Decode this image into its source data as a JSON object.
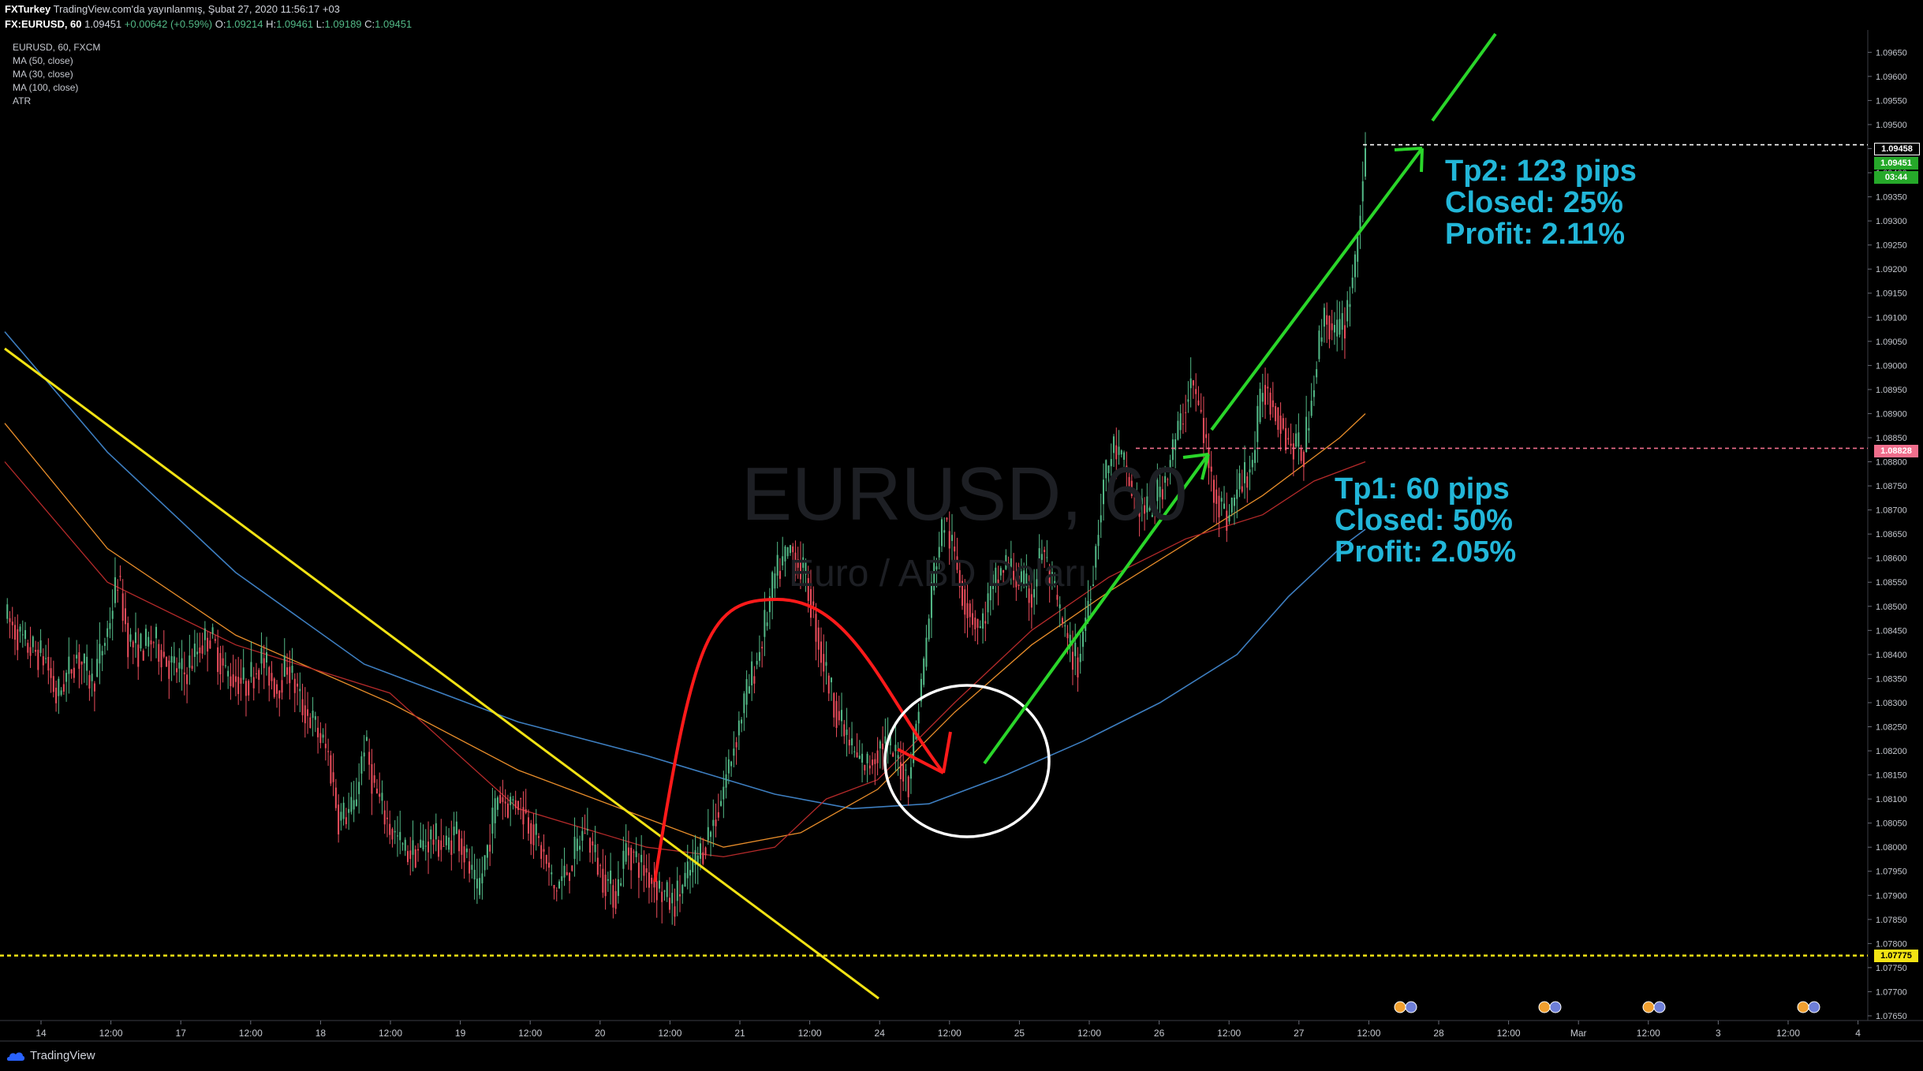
{
  "header": {
    "publisher": "FXTurkey",
    "published_text": "TradingView.com'da yayınlanmış, Şubat 27, 2020 11:56:17 +03",
    "symbol_line": "FX:EURUSD, 60",
    "last": "1.09451",
    "change": "+0.00642 (+0.59%)",
    "o_label": "O:",
    "o": "1.09214",
    "h_label": "H:",
    "h": "1.09461",
    "l_label": "L:",
    "l": "1.09189",
    "c_label": "C:",
    "c": "1.09451"
  },
  "indicators": [
    "EURUSD, 60, FXCM",
    "MA (50, close)",
    "MA (30, close)",
    "MA (100, close)",
    "ATR"
  ],
  "watermark": {
    "symbol": "EURUSD, 60",
    "name": "Euro / ABD Doları"
  },
  "annotations": {
    "tp2": [
      "Tp2: 123 pips",
      "Closed: 25%",
      "Profit: 2.11%"
    ],
    "tp1": [
      "Tp1: 60 pips",
      "Closed: 50%",
      "Profit: 2.05%"
    ]
  },
  "price_tags": {
    "tp2_line": "1.09458",
    "last_price": "1.09451",
    "countdown": "03:44",
    "tp1_line": "1.08828",
    "support_line": "1.07775"
  },
  "brand": "TradingView",
  "colors": {
    "background": "#000000",
    "bull_candle": "#53b987",
    "bear_candle": "#eb4d5c",
    "ma50": "#e88d2a",
    "ma30": "#b52a2a",
    "ma100": "#3d7ec0",
    "trendline": "#f2e314",
    "arrow": "#2ad62a",
    "curve": "#ff1a1a",
    "circle": "#ffffff",
    "annotation": "#22b6d8",
    "tp1_line": "#f06e8c",
    "last_price_tag": "#26a92a"
  },
  "chart_data": {
    "type": "candlestick",
    "ylim": [
      1.0765,
      1.0968
    ],
    "y_ticks": [
      "1.09650",
      "1.09600",
      "1.09550",
      "1.09500",
      "1.09450",
      "1.09400",
      "1.09350",
      "1.09300",
      "1.09250",
      "1.09200",
      "1.09150",
      "1.09100",
      "1.09050",
      "1.09000",
      "1.08950",
      "1.08900",
      "1.08850",
      "1.08800",
      "1.08750",
      "1.08700",
      "1.08650",
      "1.08600",
      "1.08550",
      "1.08500",
      "1.08450",
      "1.08400",
      "1.08350",
      "1.08300",
      "1.08250",
      "1.08200",
      "1.08150",
      "1.08100",
      "1.08050",
      "1.08000",
      "1.07950",
      "1.07900",
      "1.07850",
      "1.07800",
      "1.07750",
      "1.07700",
      "1.07650"
    ],
    "x_ticks": [
      "14",
      "12:00",
      "17",
      "12:00",
      "18",
      "12:00",
      "19",
      "12:00",
      "20",
      "12:00",
      "21",
      "12:00",
      "24",
      "12:00",
      "25",
      "12:00",
      "26",
      "12:00",
      "27",
      "12:00",
      "28",
      "12:00",
      "Mar",
      "12:00",
      "3",
      "12:00",
      "4"
    ],
    "close_path": [
      [
        0,
        1.0848
      ],
      [
        8,
        1.0842
      ],
      [
        16,
        1.0839
      ],
      [
        20,
        1.0831
      ],
      [
        28,
        1.084
      ],
      [
        34,
        1.0834
      ],
      [
        40,
        1.0845
      ],
      [
        44,
        1.0856
      ],
      [
        48,
        1.0843
      ],
      [
        52,
        1.0841
      ],
      [
        58,
        1.0843
      ],
      [
        64,
        1.0838
      ],
      [
        70,
        1.0836
      ],
      [
        76,
        1.0842
      ],
      [
        80,
        1.0844
      ],
      [
        86,
        1.0836
      ],
      [
        94,
        1.0834
      ],
      [
        100,
        1.0839
      ],
      [
        106,
        1.0833
      ],
      [
        110,
        1.0838
      ],
      [
        116,
        1.0829
      ],
      [
        120,
        1.0826
      ],
      [
        126,
        1.0819
      ],
      [
        130,
        1.0806
      ],
      [
        136,
        1.0808
      ],
      [
        140,
        1.0822
      ],
      [
        144,
        1.0812
      ],
      [
        150,
        1.0804
      ],
      [
        156,
        1.0799
      ],
      [
        160,
        1.0799
      ],
      [
        166,
        1.0802
      ],
      [
        172,
        1.08
      ],
      [
        176,
        1.0804
      ],
      [
        180,
        1.0797
      ],
      [
        184,
        1.079
      ],
      [
        188,
        1.08
      ],
      [
        192,
        1.0811
      ],
      [
        196,
        1.0809
      ],
      [
        200,
        1.081
      ],
      [
        206,
        1.0803
      ],
      [
        210,
        1.0798
      ],
      [
        214,
        1.0791
      ],
      [
        220,
        1.0796
      ],
      [
        226,
        1.0804
      ],
      [
        232,
        1.0795
      ],
      [
        238,
        1.079
      ],
      [
        242,
        1.08
      ],
      [
        248,
        1.0796
      ],
      [
        254,
        1.0792
      ],
      [
        260,
        1.0788
      ],
      [
        266,
        1.0794
      ],
      [
        272,
        1.08
      ],
      [
        278,
        1.0808
      ],
      [
        282,
        1.0817
      ],
      [
        288,
        1.083
      ],
      [
        294,
        1.0841
      ],
      [
        300,
        1.0856
      ],
      [
        306,
        1.0862
      ],
      [
        312,
        1.0856
      ],
      [
        318,
        1.084
      ],
      [
        322,
        1.0832
      ],
      [
        326,
        1.0825
      ],
      [
        332,
        1.0818
      ],
      [
        336,
        1.0817
      ],
      [
        342,
        1.0822
      ],
      [
        348,
        1.0818
      ],
      [
        352,
        1.0814
      ],
      [
        358,
        1.0838
      ],
      [
        362,
        1.0858
      ],
      [
        366,
        1.0868
      ],
      [
        370,
        1.086
      ],
      [
        374,
        1.0851
      ],
      [
        380,
        1.0845
      ],
      [
        384,
        1.0853
      ],
      [
        390,
        1.0859
      ],
      [
        394,
        1.0856
      ],
      [
        400,
        1.0852
      ],
      [
        404,
        1.0862
      ],
      [
        410,
        1.085
      ],
      [
        414,
        1.0842
      ],
      [
        418,
        1.0838
      ],
      [
        424,
        1.0858
      ],
      [
        428,
        1.0876
      ],
      [
        432,
        1.0883
      ],
      [
        436,
        1.0879
      ],
      [
        440,
        1.0872
      ],
      [
        446,
        1.0869
      ],
      [
        452,
        1.0877
      ],
      [
        458,
        1.0888
      ],
      [
        462,
        1.0897
      ],
      [
        466,
        1.0889
      ],
      [
        470,
        1.0876
      ],
      [
        476,
        1.0868
      ],
      [
        480,
        1.0874
      ],
      [
        486,
        1.088
      ],
      [
        490,
        1.0896
      ],
      [
        496,
        1.089
      ],
      [
        500,
        1.0884
      ],
      [
        506,
        1.0882
      ],
      [
        510,
        1.0898
      ],
      [
        514,
        1.0911
      ],
      [
        518,
        1.0906
      ],
      [
        522,
        1.0909
      ],
      [
        526,
        1.0922
      ],
      [
        530,
        1.0945
      ]
    ],
    "ma50": [
      [
        0,
        1.0888
      ],
      [
        40,
        1.0862
      ],
      [
        90,
        1.0844
      ],
      [
        150,
        1.083
      ],
      [
        200,
        1.0816
      ],
      [
        250,
        1.0806
      ],
      [
        280,
        1.08
      ],
      [
        310,
        1.0803
      ],
      [
        340,
        1.0812
      ],
      [
        370,
        1.0828
      ],
      [
        400,
        1.0842
      ],
      [
        430,
        1.0853
      ],
      [
        460,
        1.0863
      ],
      [
        490,
        1.0873
      ],
      [
        520,
        1.0885
      ],
      [
        530,
        1.089
      ]
    ],
    "ma30": [
      [
        0,
        1.088
      ],
      [
        40,
        1.0855
      ],
      [
        90,
        1.0842
      ],
      [
        150,
        1.0832
      ],
      [
        200,
        1.0808
      ],
      [
        250,
        1.08
      ],
      [
        280,
        1.0798
      ],
      [
        300,
        1.08
      ],
      [
        320,
        1.081
      ],
      [
        340,
        1.0814
      ],
      [
        370,
        1.083
      ],
      [
        400,
        1.0845
      ],
      [
        430,
        1.0856
      ],
      [
        460,
        1.0864
      ],
      [
        490,
        1.0869
      ],
      [
        510,
        1.0876
      ],
      [
        530,
        1.088
      ]
    ],
    "ma100": [
      [
        0,
        1.0907
      ],
      [
        40,
        1.0882
      ],
      [
        90,
        1.0857
      ],
      [
        140,
        1.0838
      ],
      [
        200,
        1.0826
      ],
      [
        250,
        1.0819
      ],
      [
        300,
        1.0811
      ],
      [
        330,
        1.0808
      ],
      [
        360,
        1.0809
      ],
      [
        390,
        1.0815
      ],
      [
        420,
        1.0822
      ],
      [
        450,
        1.083
      ],
      [
        480,
        1.084
      ],
      [
        500,
        1.0852
      ],
      [
        520,
        1.0862
      ],
      [
        530,
        1.0866
      ]
    ],
    "tp2_level": 1.09458,
    "tp1_level": 1.08828,
    "support_level": 1.07775
  }
}
